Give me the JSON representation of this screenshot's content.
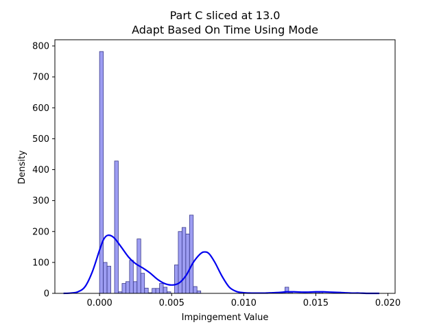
{
  "chart_data": {
    "type": "bar",
    "subtype": "histogram-with-kde",
    "title": "Part C sliced at 13.0",
    "subtitle": "Adapt Based On Time   Using Mode",
    "xlabel": "Impingement Value",
    "ylabel": "Density",
    "xlim": [
      -0.0031,
      0.0205
    ],
    "ylim": [
      0,
      820
    ],
    "xticks": [
      {
        "value": 0.0,
        "label": "0.000"
      },
      {
        "value": 0.005,
        "label": "0.005"
      },
      {
        "value": 0.01,
        "label": "0.010"
      },
      {
        "value": 0.015,
        "label": "0.015"
      },
      {
        "value": 0.02,
        "label": "0.020"
      }
    ],
    "yticks": [
      {
        "value": 0,
        "label": "0"
      },
      {
        "value": 100,
        "label": "100"
      },
      {
        "value": 200,
        "label": "200"
      },
      {
        "value": 300,
        "label": "300"
      },
      {
        "value": 400,
        "label": "400"
      },
      {
        "value": 500,
        "label": "500"
      },
      {
        "value": 600,
        "label": "600"
      },
      {
        "value": 700,
        "label": "700"
      },
      {
        "value": 800,
        "label": "800"
      }
    ],
    "grid": false,
    "colors": {
      "bar_fill": "#8c8cf0",
      "bar_edge": "#3a3a8a",
      "kde_line": "#0000ee"
    },
    "histogram": {
      "bin_width": 0.00026,
      "bins": [
        {
          "x": 0.00013,
          "value": 782
        },
        {
          "x": 0.00039,
          "value": 100
        },
        {
          "x": 0.00065,
          "value": 88
        },
        {
          "x": 0.00091,
          "value": 0
        },
        {
          "x": 0.00117,
          "value": 428
        },
        {
          "x": 0.00143,
          "value": 5
        },
        {
          "x": 0.00169,
          "value": 32
        },
        {
          "x": 0.00195,
          "value": 38
        },
        {
          "x": 0.00221,
          "value": 107
        },
        {
          "x": 0.00247,
          "value": 38
        },
        {
          "x": 0.00273,
          "value": 176
        },
        {
          "x": 0.00299,
          "value": 65
        },
        {
          "x": 0.00325,
          "value": 17
        },
        {
          "x": 0.00351,
          "value": 2
        },
        {
          "x": 0.00377,
          "value": 16
        },
        {
          "x": 0.00403,
          "value": 16
        },
        {
          "x": 0.00429,
          "value": 32
        },
        {
          "x": 0.00455,
          "value": 20
        },
        {
          "x": 0.00481,
          "value": 5
        },
        {
          "x": 0.00507,
          "value": 0
        },
        {
          "x": 0.00533,
          "value": 92
        },
        {
          "x": 0.00559,
          "value": 200
        },
        {
          "x": 0.00585,
          "value": 213
        },
        {
          "x": 0.00611,
          "value": 192
        },
        {
          "x": 0.00637,
          "value": 253
        },
        {
          "x": 0.00663,
          "value": 22
        },
        {
          "x": 0.00689,
          "value": 8
        },
        {
          "x": 0.01299,
          "value": 20
        },
        {
          "x": 0.01273,
          "value": 3
        },
        {
          "x": 0.01325,
          "value": 3
        },
        {
          "x": 0.0151,
          "value": 5
        },
        {
          "x": 0.01536,
          "value": 4
        },
        {
          "x": 0.0166,
          "value": 4
        }
      ]
    },
    "kde": {
      "x": [
        -0.0025,
        -0.002,
        -0.0015,
        -0.001,
        -0.0005,
        0.0,
        0.0003,
        0.0006,
        0.001,
        0.0015,
        0.002,
        0.0025,
        0.003,
        0.0035,
        0.004,
        0.0045,
        0.005,
        0.0055,
        0.006,
        0.0065,
        0.007,
        0.0073,
        0.0076,
        0.008,
        0.0085,
        0.009,
        0.0095,
        0.01,
        0.0105,
        0.011,
        0.0115,
        0.012,
        0.0125,
        0.013,
        0.0135,
        0.014,
        0.0145,
        0.015,
        0.0155,
        0.016,
        0.0165,
        0.017,
        0.0175,
        0.018,
        0.0185,
        0.019,
        0.0194
      ],
      "y": [
        0,
        1,
        5,
        22,
        70,
        140,
        176,
        188,
        180,
        150,
        118,
        96,
        82,
        66,
        46,
        32,
        27,
        33,
        58,
        100,
        128,
        134,
        128,
        100,
        55,
        20,
        6,
        2,
        1,
        1,
        1,
        2,
        3,
        5,
        5,
        4,
        4,
        5,
        5,
        4,
        3,
        2,
        1,
        1,
        0,
        0,
        0
      ]
    }
  }
}
